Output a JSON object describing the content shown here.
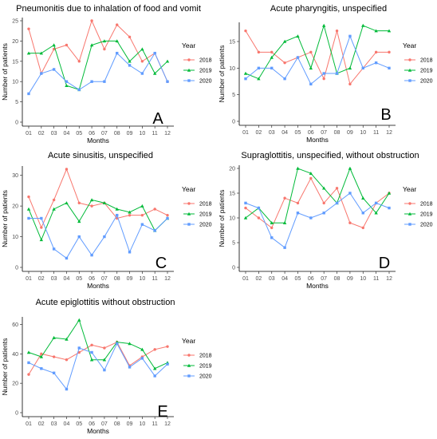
{
  "colors": {
    "2018": "#F8766D",
    "2019": "#00BA38",
    "2020": "#619CFF"
  },
  "chart_data": [
    {
      "type": "line",
      "panel_letter": "A",
      "title": "Pneumonitis due to inhalation of food and vomit",
      "xlabel": "Months",
      "ylabel": "Number of patients",
      "categories": [
        "01",
        "02",
        "03",
        "04",
        "05",
        "06",
        "07",
        "08",
        "09",
        "10",
        "11",
        "12"
      ],
      "ylim": [
        0,
        25
      ],
      "yticks": [
        0,
        5,
        10,
        15,
        20,
        25
      ],
      "legend_title": "Year",
      "legend_position": "right",
      "grid": false,
      "series": [
        {
          "name": "2018",
          "values": [
            23,
            12,
            18,
            19,
            15,
            25,
            18,
            24,
            21,
            15,
            17,
            10
          ]
        },
        {
          "name": "2019",
          "values": [
            17,
            17,
            19,
            9,
            8,
            19,
            20,
            20,
            15,
            18,
            12,
            15
          ]
        },
        {
          "name": "2020",
          "values": [
            7,
            12,
            13,
            10,
            8,
            10,
            10,
            17,
            14,
            12,
            17,
            10
          ]
        }
      ]
    },
    {
      "type": "line",
      "panel_letter": "B",
      "title": "Acute pharyngitis, unspecified",
      "xlabel": "Months",
      "ylabel": "Number of patients",
      "categories": [
        "01",
        "02",
        "03",
        "04",
        "05",
        "06",
        "07",
        "08",
        "09",
        "10",
        "11",
        "12"
      ],
      "ylim": [
        0,
        18
      ],
      "yticks": [
        0,
        5,
        10,
        15
      ],
      "legend_title": "Year",
      "legend_position": "right",
      "grid": false,
      "series": [
        {
          "name": "2018",
          "values": [
            17,
            13,
            13,
            11,
            12,
            13,
            8,
            17,
            7,
            10,
            13,
            13
          ]
        },
        {
          "name": "2019",
          "values": [
            9,
            8,
            12,
            15,
            16,
            10,
            18,
            9,
            10,
            18,
            17,
            17
          ]
        },
        {
          "name": "2020",
          "values": [
            8,
            10,
            10,
            8,
            12,
            7,
            9,
            9,
            16,
            10,
            11,
            10
          ]
        }
      ]
    },
    {
      "type": "line",
      "panel_letter": "C",
      "title": "Acute sinusitis, unspecified",
      "xlabel": "Months",
      "ylabel": "Number of patients",
      "categories": [
        "01",
        "02",
        "03",
        "04",
        "05",
        "06",
        "07",
        "08",
        "09",
        "10",
        "11",
        "12"
      ],
      "ylim": [
        0,
        32
      ],
      "yticks": [
        0,
        10,
        20,
        30
      ],
      "legend_title": "Year",
      "legend_position": "right",
      "grid": false,
      "series": [
        {
          "name": "2018",
          "values": [
            23,
            13,
            22,
            32,
            21,
            20,
            21,
            16,
            17,
            17,
            19,
            17
          ]
        },
        {
          "name": "2019",
          "values": [
            19,
            9,
            19,
            21,
            15,
            22,
            21,
            19,
            18,
            20,
            12,
            16
          ]
        },
        {
          "name": "2020",
          "values": [
            16,
            16,
            6,
            3,
            10,
            4,
            10,
            17,
            5,
            14,
            12,
            16
          ]
        }
      ]
    },
    {
      "type": "line",
      "panel_letter": "D",
      "title": "Supraglottitis, unspecified, without obstruction",
      "xlabel": "Months",
      "ylabel": "Number of patients",
      "categories": [
        "01",
        "02",
        "03",
        "04",
        "05",
        "06",
        "07",
        "08",
        "09",
        "10",
        "11",
        "12"
      ],
      "ylim": [
        0,
        20
      ],
      "yticks": [
        0,
        5,
        10,
        15,
        20
      ],
      "legend_title": "Year",
      "legend_position": "right",
      "grid": false,
      "series": [
        {
          "name": "2018",
          "values": [
            12,
            10,
            8,
            14,
            13,
            18,
            13,
            16,
            9,
            8,
            13,
            15
          ]
        },
        {
          "name": "2019",
          "values": [
            10,
            12,
            9,
            9,
            20,
            19,
            16,
            13,
            20,
            14,
            11,
            15
          ]
        },
        {
          "name": "2020",
          "values": [
            13,
            12,
            6,
            4,
            11,
            10,
            11,
            13,
            15,
            11,
            13,
            12
          ]
        }
      ]
    },
    {
      "type": "line",
      "panel_letter": "E",
      "title": "Acute epiglottitis without obstruction",
      "xlabel": "Months",
      "ylabel": "Number of patients",
      "categories": [
        "01",
        "02",
        "03",
        "04",
        "05",
        "06",
        "07",
        "08",
        "09",
        "10",
        "11",
        "12"
      ],
      "ylim": [
        0,
        63
      ],
      "yticks": [
        0,
        20,
        40,
        60
      ],
      "legend_title": "Year",
      "legend_position": "right",
      "grid": false,
      "series": [
        {
          "name": "2018",
          "values": [
            26,
            40,
            38,
            36,
            41,
            46,
            44,
            48,
            32,
            38,
            43,
            45
          ]
        },
        {
          "name": "2019",
          "values": [
            41,
            38,
            51,
            50,
            63,
            36,
            36,
            48,
            47,
            43,
            30,
            34
          ]
        },
        {
          "name": "2020",
          "values": [
            34,
            30,
            27,
            16,
            44,
            41,
            29,
            47,
            31,
            37,
            25,
            33
          ]
        }
      ]
    }
  ]
}
